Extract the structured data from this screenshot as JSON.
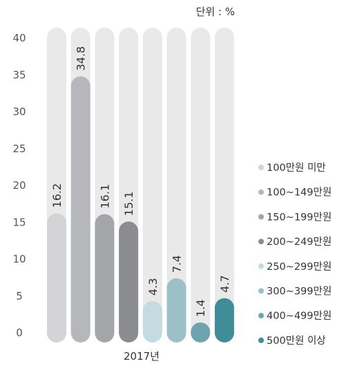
{
  "chart_data": {
    "type": "bar",
    "unit_label": "단위 : %",
    "xlabel": "2017년",
    "ylim": [
      0,
      40
    ],
    "yticks": [
      "40",
      "35",
      "30",
      "25",
      "20",
      "15",
      "10",
      "5",
      "0"
    ],
    "series": [
      {
        "name": "100만원 미만",
        "value": 16.2,
        "label": "16.2",
        "color": "#d4d4d6"
      },
      {
        "name": "100~149만원",
        "value": 34.8,
        "label": "34.8",
        "color": "#b5b7ba"
      },
      {
        "name": "150~199만원",
        "value": 16.1,
        "label": "16.1",
        "color": "#a4a5a8"
      },
      {
        "name": "200~249만원",
        "value": 15.1,
        "label": "15.1",
        "color": "#8b8c90"
      },
      {
        "name": "250~299만원",
        "value": 4.3,
        "label": "4.3",
        "color": "#c4dbe1"
      },
      {
        "name": "300~399만원",
        "value": 7.4,
        "label": "7.4",
        "color": "#9cc0c8"
      },
      {
        "name": "400~499만원",
        "value": 1.4,
        "label": "1.4",
        "color": "#6da4ae"
      },
      {
        "name": "500만원 이상",
        "value": 4.7,
        "label": "4.7",
        "color": "#3f8d98"
      }
    ],
    "track_color": "#e9e9ea",
    "grid": false,
    "legend_position": "right"
  }
}
